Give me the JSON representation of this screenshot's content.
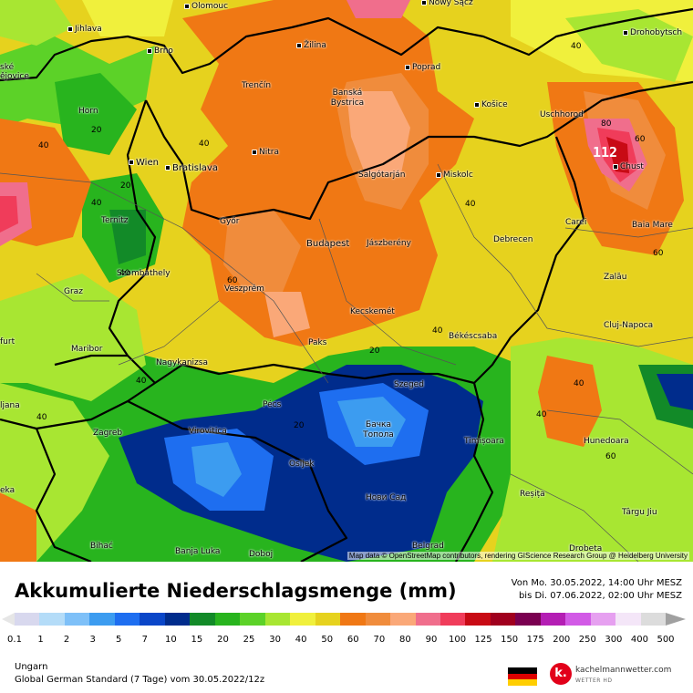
{
  "map": {
    "attribution": "Map data © OpenStreetMap contributors, rendering GIScience Research Group @ Heidelberg University",
    "max_label": "112",
    "cities": [
      {
        "name": "Olomouc"
      },
      {
        "name": "Nowy Sącz"
      },
      {
        "name": "Jihlava"
      },
      {
        "name": "Drohobytsch"
      },
      {
        "name": "Brno"
      },
      {
        "name": "Žilina"
      },
      {
        "name": "Poprad"
      },
      {
        "name": "ské"
      },
      {
        "name": "ějovice"
      },
      {
        "name": "Trenčín"
      },
      {
        "name": "Banská Bystrica"
      },
      {
        "name": "Košice"
      },
      {
        "name": "Horn"
      },
      {
        "name": "Uschhorod"
      },
      {
        "name": "Chust"
      },
      {
        "name": "Nitra"
      },
      {
        "name": "Wien"
      },
      {
        "name": "Bratislava"
      },
      {
        "name": "Salgótarján"
      },
      {
        "name": "Miskolc"
      },
      {
        "name": "Ternitz"
      },
      {
        "name": "Győr"
      },
      {
        "name": "Carei"
      },
      {
        "name": "Baia Mare"
      },
      {
        "name": "Budapest"
      },
      {
        "name": "Jászberény"
      },
      {
        "name": "Debrecen"
      },
      {
        "name": "Szombathely"
      },
      {
        "name": "Zalău"
      },
      {
        "name": "Graz"
      },
      {
        "name": "Veszprém"
      },
      {
        "name": "Kecskemét"
      },
      {
        "name": "Cluj-Napoca"
      },
      {
        "name": "furt"
      },
      {
        "name": "Paks"
      },
      {
        "name": "Békéscsaba"
      },
      {
        "name": "Maribor"
      },
      {
        "name": "Nagykanizsa"
      },
      {
        "name": "Szeged"
      },
      {
        "name": "ljana"
      },
      {
        "name": "Pécs"
      },
      {
        "name": "Бачка Топола"
      },
      {
        "name": "Zagreb"
      },
      {
        "name": "Virovitica"
      },
      {
        "name": "Timișoara"
      },
      {
        "name": "Hunedoara"
      },
      {
        "name": "Osijek"
      },
      {
        "name": "eka"
      },
      {
        "name": "Нови Сад"
      },
      {
        "name": "Reșița"
      },
      {
        "name": "Târgu Jiu"
      },
      {
        "name": "Bihać"
      },
      {
        "name": "Banja Luka"
      },
      {
        "name": "Doboj"
      },
      {
        "name": "Belgrad"
      },
      {
        "name": "Drobeta"
      }
    ],
    "contour_labels": [
      "20",
      "40",
      "40",
      "20",
      "40",
      "60",
      "40",
      "80",
      "60",
      "40",
      "40",
      "60",
      "40",
      "20",
      "40",
      "20",
      "40",
      "40",
      "60",
      "40",
      "20",
      "40",
      "40",
      "40",
      "40",
      "60",
      "40",
      "20",
      "40",
      "40",
      "40"
    ]
  },
  "legend": {
    "title": "Akkumulierte Niederschlagsmenge (mm)",
    "period_from": "Von Mo. 30.05.2022, 14:00 Uhr MESZ",
    "period_to": "bis Di. 07.06.2022, 02:00 Uhr MESZ",
    "ticks": [
      "0.1",
      "1",
      "2",
      "3",
      "5",
      "7",
      "10",
      "15",
      "20",
      "25",
      "30",
      "40",
      "50",
      "60",
      "70",
      "80",
      "90",
      "100",
      "125",
      "150",
      "175",
      "200",
      "250",
      "300",
      "400",
      "500"
    ],
    "colors": [
      "#d8d8ee",
      "#b4dcf8",
      "#7ec0f8",
      "#3c9cf0",
      "#1e6ef0",
      "#0a46c8",
      "#002c8c",
      "#128a28",
      "#28b41e",
      "#5cd228",
      "#a8e632",
      "#f0f03c",
      "#e6d21e",
      "#f07814",
      "#f08c3c",
      "#faa878",
      "#f06e8c",
      "#f03c5a",
      "#c80a14",
      "#a0001e",
      "#7a0050",
      "#b41eb4",
      "#d25ae6",
      "#e6a0f0",
      "#f4e6f8",
      "#dcdcdc"
    ],
    "region": "Ungarn",
    "model": "Global German Standard (7 Tage) vom 30.05.2022/12z",
    "logo_name": "kachelmannwetter.com",
    "logo_sub": "WETTER HD",
    "logo_letter": "k."
  }
}
